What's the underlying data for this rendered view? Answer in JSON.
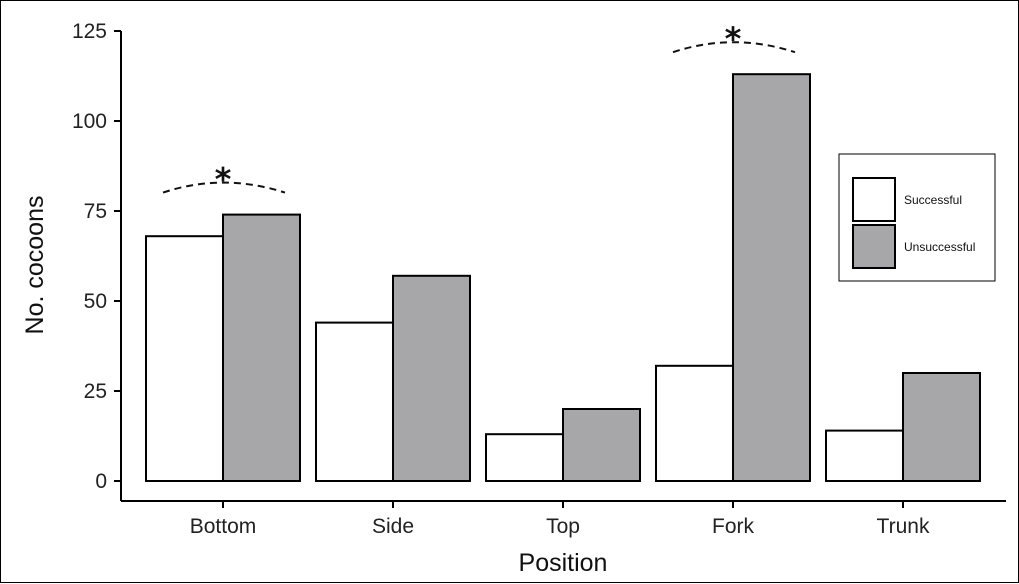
{
  "chart_data": {
    "type": "bar",
    "xlabel": "Position",
    "ylabel": "No. cocoons",
    "categories": [
      "Bottom",
      "Side",
      "Top",
      "Fork",
      "Trunk"
    ],
    "series": [
      {
        "name": "Successful",
        "values": [
          68,
          44,
          13,
          32,
          14
        ],
        "color": "#ffffff"
      },
      {
        "name": "Unsuccessful",
        "values": [
          74,
          57,
          20,
          113,
          30
        ],
        "color": "#a7a7aa"
      }
    ],
    "ylim": [
      0,
      125
    ],
    "yticks": [
      0,
      25,
      50,
      75,
      100,
      125
    ],
    "grid": false,
    "legend_position": "right",
    "annotations": [
      {
        "category": "Bottom",
        "text": "*"
      },
      {
        "category": "Fork",
        "text": "*"
      }
    ]
  }
}
